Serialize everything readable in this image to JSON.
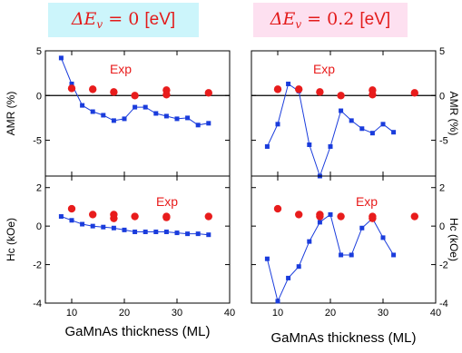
{
  "titles": [
    {
      "symbol": "ΔE",
      "subscript": "v",
      "rest": " = 0 ",
      "unit": "[eV]"
    },
    {
      "symbol": "ΔE",
      "subscript": "v",
      "rest": " = 0.2 ",
      "unit": "[eV]"
    }
  ],
  "colors": {
    "simulation": "#1a3cdc",
    "experiment": "#e81c1c",
    "zero_line": "#000000",
    "title_left_bg": "#ccf5fb",
    "title_right_bg": "#fde0f0"
  },
  "chart_data": [
    {
      "type": "scatter",
      "panel": "top-left",
      "xlim": [
        5,
        40
      ],
      "ylim": [
        -9,
        5
      ],
      "ylabel": "AMR (%)",
      "xlabel": "",
      "zero_line": true,
      "annotation": "Exp",
      "xticks": [
        10,
        20,
        30,
        40
      ],
      "xtick_labels": [
        "",
        "",
        "",
        ""
      ],
      "yticks": [
        5,
        0,
        -5
      ],
      "ytick_labels": [
        "5",
        "0",
        "-5"
      ],
      "series": [
        {
          "kind": "simulation",
          "x": [
            8,
            10,
            12,
            14,
            16,
            18,
            20,
            22,
            24,
            26,
            28,
            30,
            32,
            34,
            36
          ],
          "y": [
            4.2,
            1.3,
            -1.1,
            -1.8,
            -2.2,
            -2.8,
            -2.6,
            -1.3,
            -1.3,
            -2.0,
            -2.3,
            -2.6,
            -2.5,
            -3.3,
            -3.1
          ]
        },
        {
          "kind": "experiment",
          "x": [
            10,
            14,
            18,
            22,
            28,
            28,
            36
          ],
          "y": [
            0.8,
            0.7,
            0.4,
            0.0,
            0.6,
            0.1,
            0.3
          ]
        }
      ]
    },
    {
      "type": "scatter",
      "panel": "top-right",
      "xlim": [
        5,
        40
      ],
      "ylim": [
        -9,
        5
      ],
      "ylabel": "AMR (%)",
      "xlabel": "",
      "zero_line": true,
      "annotation": "Exp",
      "xticks": [
        10,
        20,
        30,
        40
      ],
      "xtick_labels": [
        "",
        "",
        "",
        ""
      ],
      "yticks": [
        5,
        0,
        -5
      ],
      "ytick_labels": [
        "5",
        "0",
        "-5"
      ],
      "series": [
        {
          "kind": "simulation",
          "x": [
            8,
            10,
            12,
            14,
            16,
            18,
            20,
            22,
            24,
            26,
            28,
            30,
            32
          ],
          "y": [
            -5.7,
            -3.2,
            1.3,
            0.5,
            -5.5,
            -9.0,
            -5.7,
            -1.7,
            -2.8,
            -3.7,
            -4.2,
            -3.2,
            -4.1
          ]
        },
        {
          "kind": "experiment",
          "x": [
            10,
            14,
            18,
            22,
            28,
            28,
            36
          ],
          "y": [
            0.7,
            0.7,
            0.4,
            0.0,
            0.6,
            0.1,
            0.3
          ]
        }
      ]
    },
    {
      "type": "scatter",
      "panel": "bottom-left",
      "xlim": [
        5,
        40
      ],
      "ylim": [
        -4,
        2.6
      ],
      "ylabel": "Hc (kOe)",
      "xlabel": "GaMnAs thickness (ML)",
      "zero_line": false,
      "annotation": "Exp",
      "xticks": [
        10,
        20,
        30,
        40
      ],
      "xtick_labels": [
        "10",
        "20",
        "30",
        "40"
      ],
      "yticks": [
        2,
        0,
        -2,
        -4
      ],
      "ytick_labels": [
        "2",
        "0",
        "-2",
        "-4"
      ],
      "series": [
        {
          "kind": "simulation",
          "x": [
            8,
            10,
            12,
            14,
            16,
            18,
            20,
            22,
            24,
            26,
            28,
            30,
            32,
            34,
            36
          ],
          "y": [
            0.5,
            0.3,
            0.1,
            0.0,
            -0.05,
            -0.1,
            -0.2,
            -0.3,
            -0.3,
            -0.3,
            -0.3,
            -0.35,
            -0.4,
            -0.4,
            -0.45
          ]
        },
        {
          "kind": "experiment",
          "x": [
            10,
            14,
            18,
            18,
            22,
            28,
            28,
            36
          ],
          "y": [
            0.9,
            0.6,
            0.6,
            0.4,
            0.5,
            0.5,
            0.45,
            0.5
          ]
        }
      ]
    },
    {
      "type": "scatter",
      "panel": "bottom-right",
      "xlim": [
        5,
        40
      ],
      "ylim": [
        -4,
        2.6
      ],
      "ylabel": "Hc (kOe)",
      "xlabel": "GaMnAs thickness (ML)",
      "zero_line": false,
      "annotation": "Exp",
      "xticks": [
        10,
        20,
        30,
        40
      ],
      "xtick_labels": [
        "10",
        "20",
        "30",
        "40"
      ],
      "yticks": [
        2,
        0,
        -2,
        -4
      ],
      "ytick_labels": [
        "2",
        "0",
        "-2",
        "-4"
      ],
      "series": [
        {
          "kind": "simulation",
          "x": [
            8,
            10,
            12,
            14,
            16,
            18,
            20,
            22,
            24,
            26,
            28,
            30,
            32
          ],
          "y": [
            -1.7,
            -3.9,
            -2.7,
            -2.1,
            -0.8,
            0.2,
            0.6,
            -1.5,
            -1.5,
            -0.1,
            0.4,
            -0.6,
            -1.5
          ]
        },
        {
          "kind": "experiment",
          "x": [
            10,
            14,
            18,
            18,
            22,
            28,
            28,
            36
          ],
          "y": [
            0.9,
            0.6,
            0.6,
            0.5,
            0.5,
            0.5,
            0.4,
            0.5
          ]
        }
      ]
    }
  ]
}
